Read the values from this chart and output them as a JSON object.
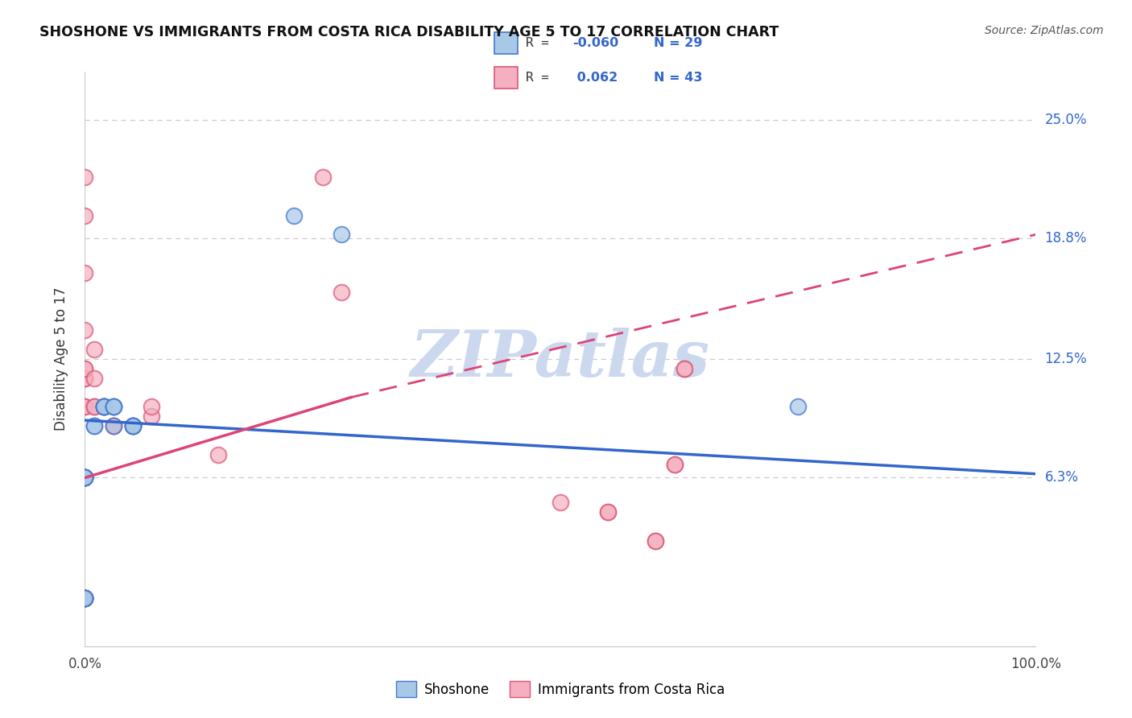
{
  "title": "SHOSHONE VS IMMIGRANTS FROM COSTA RICA DISABILITY AGE 5 TO 17 CORRELATION CHART",
  "source": "Source: ZipAtlas.com",
  "ylabel": "Disability Age 5 to 17",
  "xlim": [
    0.0,
    1.0
  ],
  "ylim": [
    -0.025,
    0.275
  ],
  "xtick_positions": [
    0.0,
    1.0
  ],
  "xtick_labels": [
    "0.0%",
    "100.0%"
  ],
  "ytick_values": [
    0.063,
    0.125,
    0.188,
    0.25
  ],
  "ytick_labels": [
    "6.3%",
    "12.5%",
    "18.8%",
    "25.0%"
  ],
  "color_blue": "#a8c8e8",
  "color_pink": "#f4b0c0",
  "edge_blue": "#4477cc",
  "edge_pink": "#dd5577",
  "line_blue": "#3366cc",
  "line_pink": "#dd4477",
  "r_color": "#3366cc",
  "watermark_color": "#ccd8ee",
  "shoshone_x": [
    0.0,
    0.0,
    0.0,
    0.0,
    0.0,
    0.0,
    0.0,
    0.0,
    0.0,
    0.0,
    0.0,
    0.0,
    0.01,
    0.01,
    0.02,
    0.02,
    0.02,
    0.02,
    0.03,
    0.03,
    0.03,
    0.03,
    0.05,
    0.05,
    0.05,
    0.05,
    0.22,
    0.27,
    0.75
  ],
  "shoshone_y": [
    0.0,
    0.0,
    0.0,
    0.0,
    0.0,
    0.0,
    0.063,
    0.063,
    0.063,
    0.063,
    0.063,
    0.063,
    0.09,
    0.09,
    0.1,
    0.1,
    0.1,
    0.1,
    0.1,
    0.1,
    0.1,
    0.09,
    0.09,
    0.09,
    0.09,
    0.09,
    0.2,
    0.19,
    0.1
  ],
  "costarica_x": [
    0.0,
    0.0,
    0.0,
    0.0,
    0.0,
    0.0,
    0.0,
    0.0,
    0.0,
    0.0,
    0.0,
    0.0,
    0.0,
    0.0,
    0.0,
    0.0,
    0.0,
    0.0,
    0.0,
    0.0,
    0.01,
    0.01,
    0.01,
    0.01,
    0.02,
    0.02,
    0.03,
    0.03,
    0.05,
    0.07,
    0.07,
    0.14,
    0.25,
    0.27,
    0.55,
    0.6,
    0.62,
    0.63,
    0.55,
    0.6,
    0.62,
    0.63,
    0.5
  ],
  "costarica_y": [
    0.0,
    0.0,
    0.0,
    0.0,
    0.0,
    0.0,
    0.0,
    0.063,
    0.063,
    0.063,
    0.1,
    0.1,
    0.115,
    0.115,
    0.12,
    0.12,
    0.14,
    0.17,
    0.2,
    0.22,
    0.1,
    0.1,
    0.115,
    0.13,
    0.1,
    0.1,
    0.09,
    0.09,
    0.09,
    0.095,
    0.1,
    0.075,
    0.22,
    0.16,
    0.045,
    0.03,
    0.07,
    0.12,
    0.045,
    0.03,
    0.07,
    0.12,
    0.05
  ],
  "blue_line_x0": 0.0,
  "blue_line_y0": 0.093,
  "blue_line_x1": 1.0,
  "blue_line_y1": 0.065,
  "pink_line_solid_x0": 0.0,
  "pink_line_solid_y0": 0.063,
  "pink_line_solid_x1": 0.28,
  "pink_line_solid_y1": 0.105,
  "pink_line_dash_x0": 0.28,
  "pink_line_dash_y0": 0.105,
  "pink_line_dash_x1": 1.0,
  "pink_line_dash_y1": 0.19
}
